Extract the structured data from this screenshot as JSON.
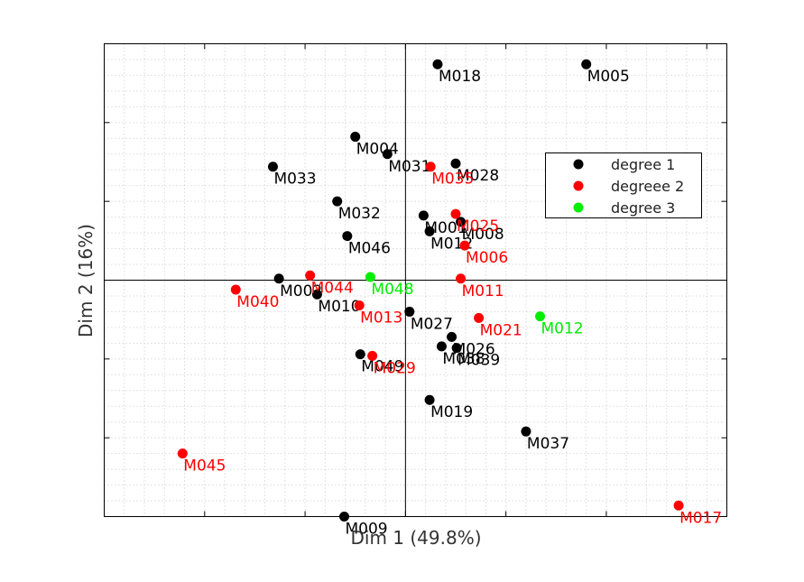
{
  "chart_data": {
    "type": "scatter",
    "xlabel": "Dim 1 (49.8%)",
    "ylabel": "Dim 2 (16%)",
    "xlim": [
      -3.0,
      3.2
    ],
    "ylim": [
      -1.5,
      1.5
    ],
    "grid": true,
    "legend_position": "top-right",
    "colors": {
      "degree 1": "#000000",
      "degreee 2": "#ff0000",
      "degree 3": "#00ee00"
    },
    "series": [
      {
        "name": "degree 1",
        "points": [
          {
            "label": "M018",
            "x": 0.32,
            "y": 1.37
          },
          {
            "label": "M005",
            "x": 1.8,
            "y": 1.37
          },
          {
            "label": "M004",
            "x": -0.5,
            "y": 0.91
          },
          {
            "label": "M031",
            "x": -0.18,
            "y": 0.8
          },
          {
            "label": "M028",
            "x": 0.5,
            "y": 0.74
          },
          {
            "label": "M033",
            "x": -1.32,
            "y": 0.72
          },
          {
            "label": "M032",
            "x": -0.68,
            "y": 0.5
          },
          {
            "label": "M001",
            "x": 0.18,
            "y": 0.41
          },
          {
            "label": "M008",
            "x": 0.55,
            "y": 0.37
          },
          {
            "label": "M012",
            "x": 0.24,
            "y": 0.31
          },
          {
            "label": "M046",
            "x": -0.58,
            "y": 0.28
          },
          {
            "label": "M002",
            "x": -1.26,
            "y": 0.01
          },
          {
            "label": "M010",
            "x": -0.88,
            "y": -0.09
          },
          {
            "label": "M027",
            "x": 0.04,
            "y": -0.2
          },
          {
            "label": "M026",
            "x": 0.46,
            "y": -0.36
          },
          {
            "label": "M038",
            "x": 0.36,
            "y": -0.42
          },
          {
            "label": "M039",
            "x": 0.51,
            "y": -0.43
          },
          {
            "label": "M049",
            "x": -0.45,
            "y": -0.47
          },
          {
            "label": "M019",
            "x": 0.24,
            "y": -0.76
          },
          {
            "label": "M037",
            "x": 1.2,
            "y": -0.96
          },
          {
            "label": "M009",
            "x": -0.61,
            "y": -1.5
          }
        ]
      },
      {
        "name": "degreee 2",
        "points": [
          {
            "label": "M035",
            "x": 0.25,
            "y": 0.72
          },
          {
            "label": "M025",
            "x": 0.5,
            "y": 0.42
          },
          {
            "label": "M006",
            "x": 0.59,
            "y": 0.22
          },
          {
            "label": "M044",
            "x": -0.95,
            "y": 0.03
          },
          {
            "label": "M011",
            "x": 0.55,
            "y": 0.01
          },
          {
            "label": "M040",
            "x": -1.69,
            "y": -0.06
          },
          {
            "label": "M013",
            "x": -0.46,
            "y": -0.16
          },
          {
            "label": "M021",
            "x": 0.73,
            "y": -0.24
          },
          {
            "label": "M029",
            "x": -0.33,
            "y": -0.48
          },
          {
            "label": "M045",
            "x": -2.22,
            "y": -1.1
          },
          {
            "label": "M017",
            "x": 2.72,
            "y": -1.43
          }
        ]
      },
      {
        "name": "degree 3",
        "points": [
          {
            "label": "M048",
            "x": -0.35,
            "y": 0.02
          },
          {
            "label": "M012",
            "x": 1.34,
            "y": -0.23
          }
        ]
      }
    ]
  }
}
